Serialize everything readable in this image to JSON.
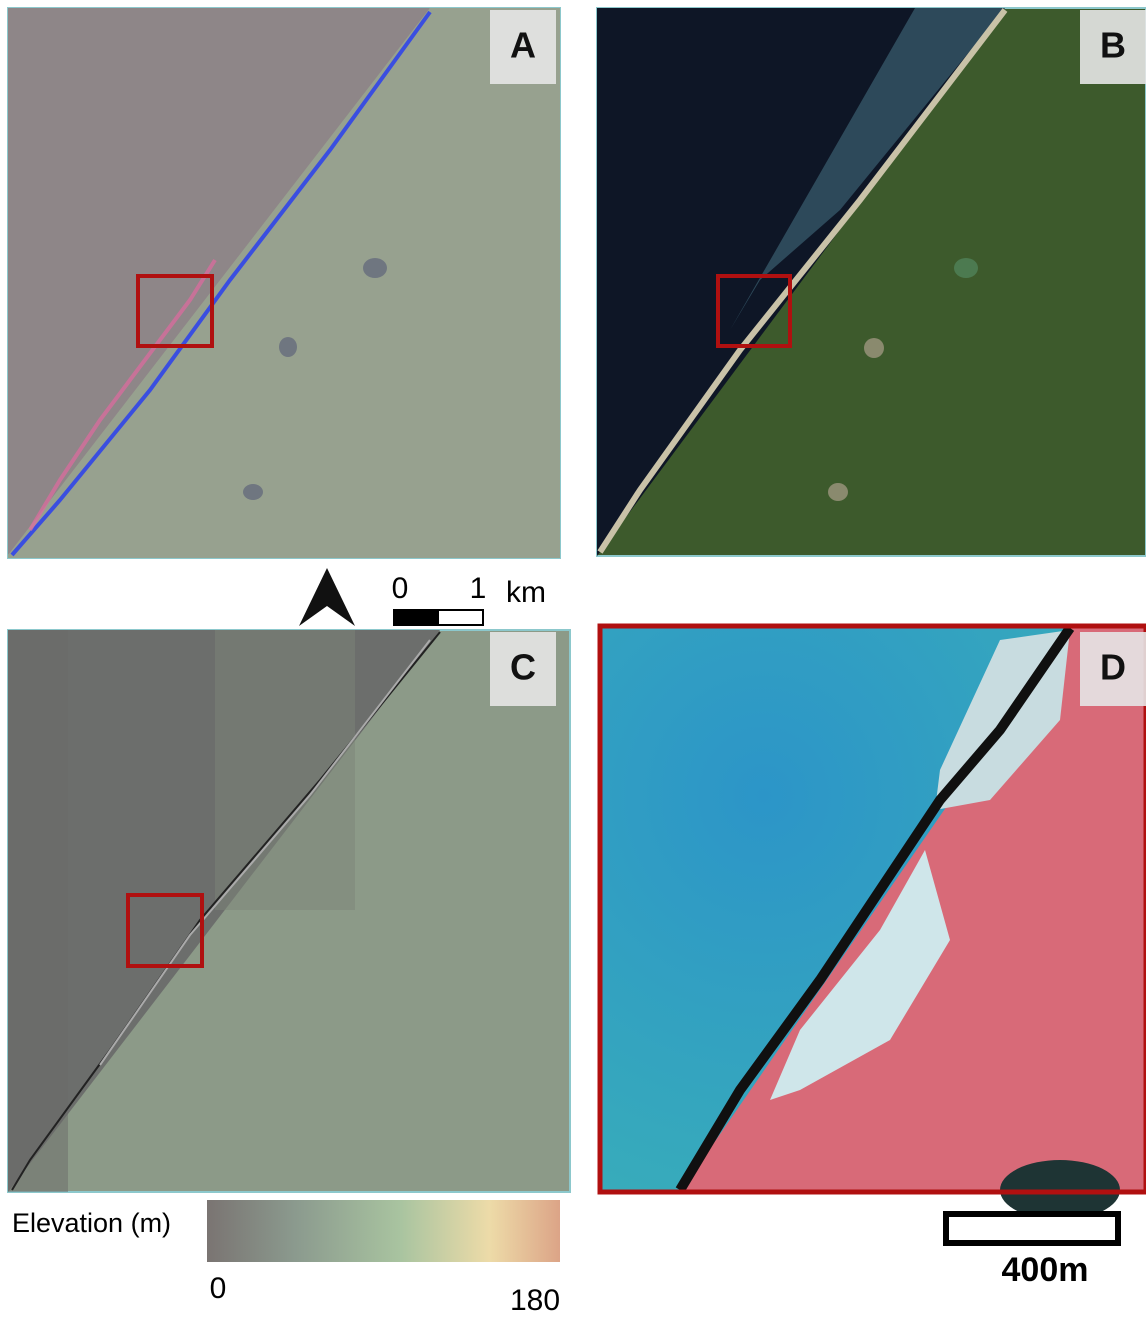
{
  "panels": [
    {
      "label": "A"
    },
    {
      "label": "B"
    },
    {
      "label": "C"
    },
    {
      "label": "D"
    }
  ],
  "north_scale": {
    "start": 0,
    "end": 1,
    "unit": "km"
  },
  "elevation_legend": {
    "title": "Elevation (m)",
    "min": 0,
    "max": 180
  },
  "detail_scale": {
    "label": "400m"
  }
}
